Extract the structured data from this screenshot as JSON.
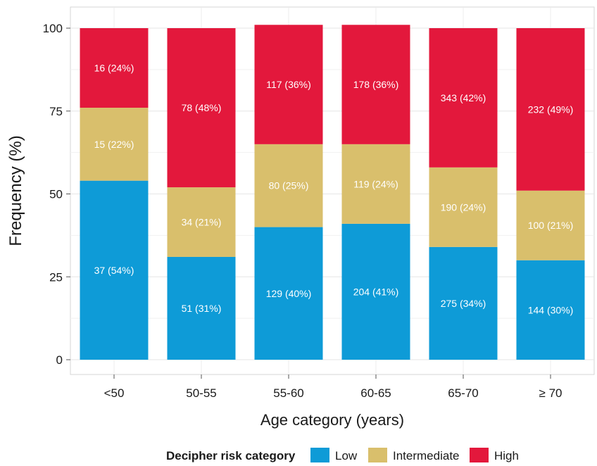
{
  "chart_data": {
    "type": "bar",
    "stacked": true,
    "title": "",
    "xlabel": "Age category (years)",
    "ylabel": "Frequency (%)",
    "ylim": [
      0,
      100
    ],
    "yticks": [
      0,
      25,
      50,
      75,
      100
    ],
    "categories": [
      "<50",
      "50-55",
      "55-60",
      "60-65",
      "65-70",
      "≥ 70"
    ],
    "series": [
      {
        "name": "Low",
        "color": "#0e9bd7",
        "values": [
          54,
          31,
          40,
          41,
          34,
          30
        ],
        "labels": [
          "37 (54%)",
          "51 (31%)",
          "129 (40%)",
          "204 (41%)",
          "275 (34%)",
          "144 (30%)"
        ]
      },
      {
        "name": "Intermediate",
        "color": "#d9bf6c",
        "values": [
          22,
          21,
          25,
          24,
          24,
          21
        ],
        "labels": [
          "15 (22%)",
          "34 (21%)",
          "80 (25%)",
          "119 (24%)",
          "190 (24%)",
          "100 (21%)"
        ]
      },
      {
        "name": "High",
        "color": "#e3183c",
        "values": [
          24,
          48,
          36,
          36,
          42,
          49
        ],
        "labels": [
          "16 (24%)",
          "78 (48%)",
          "117 (36%)",
          "178 (36%)",
          "343 (42%)",
          "232 (49%)"
        ]
      }
    ],
    "legend": {
      "title": "Decipher risk category",
      "position": "bottom"
    },
    "grid": true
  }
}
